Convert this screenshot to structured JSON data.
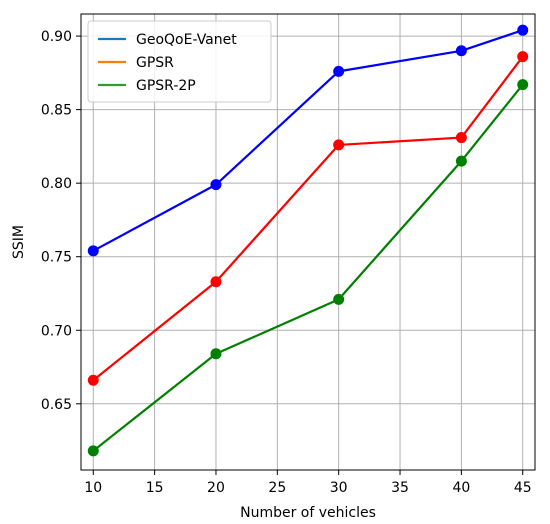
{
  "chart_data": {
    "type": "line",
    "xlabel": "Number of vehicles",
    "ylabel": "SSIM",
    "x": [
      10,
      20,
      30,
      40,
      45
    ],
    "xlim": [
      9,
      46
    ],
    "ylim": [
      0.605,
      0.915
    ],
    "xticks": [
      "10",
      "15",
      "20",
      "25",
      "30",
      "35",
      "40",
      "45"
    ],
    "yticks": [
      "0.65",
      "0.70",
      "0.75",
      "0.80",
      "0.85",
      "0.90"
    ],
    "grid": true,
    "legend_position": "top-left",
    "legend": [
      {
        "name": "GeoQoE-Vanet",
        "color": "#1f77b4"
      },
      {
        "name": "GPSR",
        "color": "#ff7f0e"
      },
      {
        "name": "GPSR-2P",
        "color": "#2ca02c"
      }
    ],
    "series": [
      {
        "name": "GeoQoE-Vanet",
        "color": "#0000ff",
        "values": [
          0.754,
          0.799,
          0.876,
          0.89,
          0.904
        ]
      },
      {
        "name": "GPSR",
        "color": "#ff0000",
        "values": [
          0.666,
          0.733,
          0.826,
          0.831,
          0.886
        ]
      },
      {
        "name": "GPSR-2P",
        "color": "#008000",
        "values": [
          0.618,
          0.684,
          0.721,
          0.815,
          0.867
        ]
      }
    ]
  }
}
